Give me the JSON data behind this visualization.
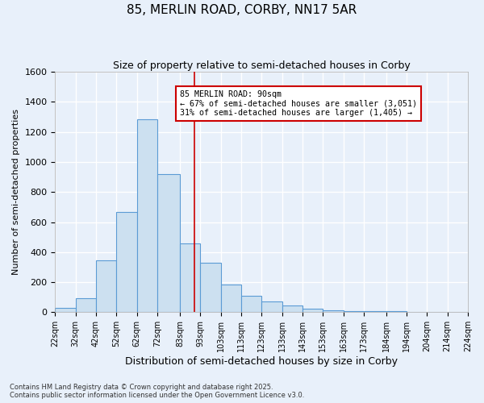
{
  "title": "85, MERLIN ROAD, CORBY, NN17 5AR",
  "subtitle": "Size of property relative to semi-detached houses in Corby",
  "xlabel": "Distribution of semi-detached houses by size in Corby",
  "ylabel": "Number of semi-detached properties",
  "footnote1": "Contains HM Land Registry data © Crown copyright and database right 2025.",
  "footnote2": "Contains public sector information licensed under the Open Government Licence v3.0.",
  "bar_left_edges": [
    22,
    32,
    42,
    52,
    62,
    72,
    83,
    93,
    103,
    113,
    123,
    133,
    143,
    153,
    163,
    173,
    184,
    194,
    204,
    214
  ],
  "bar_widths": [
    10,
    10,
    10,
    10,
    10,
    11,
    10,
    10,
    10,
    10,
    10,
    10,
    10,
    10,
    10,
    11,
    10,
    10,
    10,
    10
  ],
  "bar_heights": [
    30,
    95,
    345,
    665,
    1285,
    920,
    460,
    330,
    185,
    110,
    70,
    45,
    25,
    10,
    5,
    5,
    5,
    0,
    0,
    0
  ],
  "bar_color": "#cce0f0",
  "bar_edge_color": "#5b9bd5",
  "bg_color": "#e8f0fa",
  "grid_color": "#ffffff",
  "vline_x": 90,
  "vline_color": "#cc0000",
  "annotation_text": "85 MERLIN ROAD: 90sqm\n← 67% of semi-detached houses are smaller (3,051)\n31% of semi-detached houses are larger (1,405) →",
  "annotation_box_color": "#cc0000",
  "ylim": [
    0,
    1600
  ],
  "tick_labels": [
    "22sqm",
    "32sqm",
    "42sqm",
    "52sqm",
    "62sqm",
    "72sqm",
    "83sqm",
    "93sqm",
    "103sqm",
    "113sqm",
    "123sqm",
    "133sqm",
    "143sqm",
    "153sqm",
    "163sqm",
    "173sqm",
    "184sqm",
    "194sqm",
    "204sqm",
    "214sqm",
    "224sqm"
  ],
  "yticks": [
    0,
    200,
    400,
    600,
    800,
    1000,
    1200,
    1400,
    1600
  ]
}
